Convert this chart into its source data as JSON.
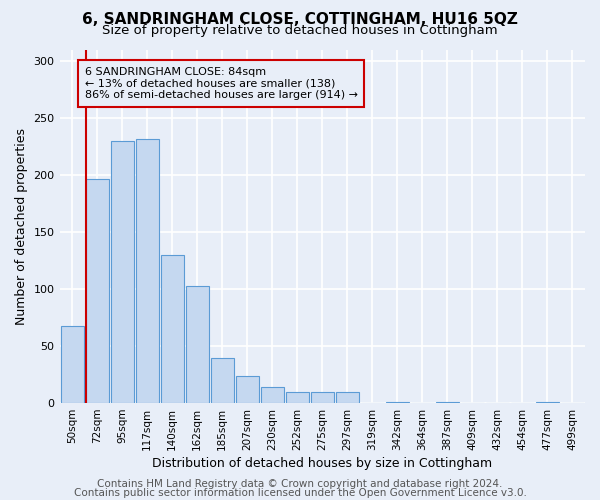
{
  "title": "6, SANDRINGHAM CLOSE, COTTINGHAM, HU16 5QZ",
  "subtitle": "Size of property relative to detached houses in Cottingham",
  "xlabel": "Distribution of detached houses by size in Cottingham",
  "ylabel": "Number of detached properties",
  "bar_labels": [
    "50sqm",
    "72sqm",
    "95sqm",
    "117sqm",
    "140sqm",
    "162sqm",
    "185sqm",
    "207sqm",
    "230sqm",
    "252sqm",
    "275sqm",
    "297sqm",
    "319sqm",
    "342sqm",
    "364sqm",
    "387sqm",
    "409sqm",
    "432sqm",
    "454sqm",
    "477sqm",
    "499sqm"
  ],
  "bar_values": [
    68,
    197,
    230,
    232,
    130,
    103,
    40,
    24,
    14,
    10,
    10,
    10,
    0,
    1,
    0,
    1,
    0,
    0,
    0,
    1,
    0
  ],
  "bar_color": "#c5d8f0",
  "bar_edgecolor": "#5b9bd5",
  "vline_color": "#cc0000",
  "annotation_title": "6 SANDRINGHAM CLOSE: 84sqm",
  "annotation_line1": "← 13% of detached houses are smaller (138)",
  "annotation_line2": "86% of semi-detached houses are larger (914) →",
  "annotation_box_edgecolor": "#cc0000",
  "ylim": [
    0,
    310
  ],
  "yticks": [
    0,
    50,
    100,
    150,
    200,
    250,
    300
  ],
  "footer1": "Contains HM Land Registry data © Crown copyright and database right 2024.",
  "footer2": "Contains public sector information licensed under the Open Government Licence v3.0.",
  "bg_color": "#e8eef8",
  "grid_color": "#ffffff",
  "title_fontsize": 11,
  "subtitle_fontsize": 9.5,
  "xlabel_fontsize": 9,
  "ylabel_fontsize": 9,
  "footer_fontsize": 7.5
}
